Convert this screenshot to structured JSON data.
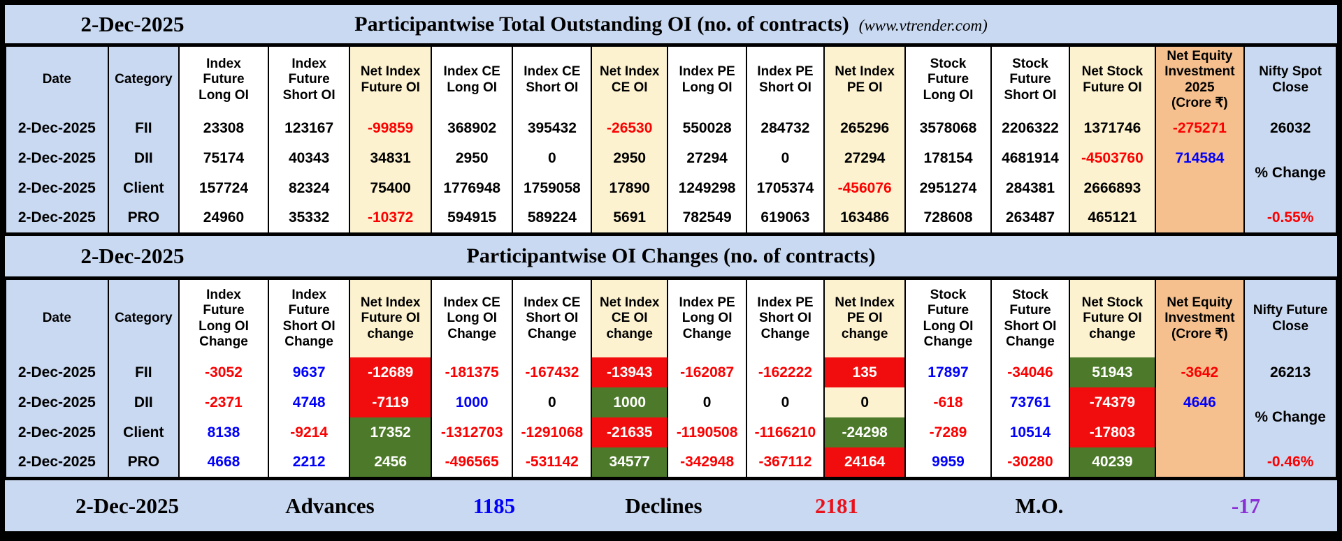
{
  "colors": {
    "page_blue": "#c9d9f1",
    "net_col_cream": "#fcf2cf",
    "equity_col_orange": "#f5c08e",
    "bearish_cell_red": "#f10d0d",
    "bullish_cell_green": "#4d7a2a",
    "negative_text_red": "#fb0000",
    "positive_text_blue": "#0000fb",
    "mo_purple": "#8b2fd6"
  },
  "band1": {
    "date": "2-Dec-2025",
    "title": "Participantwise Total Outstanding OI (no. of contracts)",
    "source": "(www.vtrender.com)"
  },
  "band2": {
    "date": "2-Dec-2025",
    "title": "Participantwise OI Changes (no. of contracts)"
  },
  "table1": {
    "columns": [
      {
        "label": "Date",
        "bg": "blue"
      },
      {
        "label": "Category",
        "bg": "blue"
      },
      {
        "label": "Index\nFuture\nLong OI",
        "bg": "white"
      },
      {
        "label": "Index\nFuture\nShort OI",
        "bg": "white"
      },
      {
        "label": "Net Index\nFuture OI",
        "bg": "cream"
      },
      {
        "label": "Index CE\nLong OI",
        "bg": "white"
      },
      {
        "label": "Index CE\nShort OI",
        "bg": "white"
      },
      {
        "label": "Net Index\nCE OI",
        "bg": "cream"
      },
      {
        "label": "Index PE\nLong OI",
        "bg": "white"
      },
      {
        "label": "Index PE\nShort OI",
        "bg": "white"
      },
      {
        "label": "Net Index\nPE OI",
        "bg": "cream"
      },
      {
        "label": "Stock\nFuture\nLong OI",
        "bg": "white"
      },
      {
        "label": "Stock\nFuture\nShort OI",
        "bg": "white"
      },
      {
        "label": "Net Stock\nFuture OI",
        "bg": "cream"
      },
      {
        "label": "Net Equity\nInvestment\n2025\n(Crore ₹)",
        "bg": "orange"
      },
      {
        "label": "Nifty Spot\nClose",
        "bg": "blue"
      }
    ],
    "rows": [
      [
        [
          "2-Dec-2025",
          "k"
        ],
        [
          "FII",
          "k"
        ],
        [
          "23308",
          "k"
        ],
        [
          "123167",
          "k"
        ],
        [
          "-99859",
          "r"
        ],
        [
          "368902",
          "k"
        ],
        [
          "395432",
          "k"
        ],
        [
          "-26530",
          "r"
        ],
        [
          "550028",
          "k"
        ],
        [
          "284732",
          "k"
        ],
        [
          "265296",
          "k"
        ],
        [
          "3578068",
          "k"
        ],
        [
          "2206322",
          "k"
        ],
        [
          "1371746",
          "k"
        ]
      ],
      [
        [
          "2-Dec-2025",
          "k"
        ],
        [
          "DII",
          "k"
        ],
        [
          "75174",
          "k"
        ],
        [
          "40343",
          "k"
        ],
        [
          "34831",
          "k"
        ],
        [
          "2950",
          "k"
        ],
        [
          "0",
          "k"
        ],
        [
          "2950",
          "k"
        ],
        [
          "27294",
          "k"
        ],
        [
          "0",
          "k"
        ],
        [
          "27294",
          "k"
        ],
        [
          "178154",
          "k"
        ],
        [
          "4681914",
          "k"
        ],
        [
          "-4503760",
          "r"
        ]
      ],
      [
        [
          "2-Dec-2025",
          "k"
        ],
        [
          "Client",
          "k"
        ],
        [
          "157724",
          "k"
        ],
        [
          "82324",
          "k"
        ],
        [
          "75400",
          "k"
        ],
        [
          "1776948",
          "k"
        ],
        [
          "1759058",
          "k"
        ],
        [
          "17890",
          "k"
        ],
        [
          "1249298",
          "k"
        ],
        [
          "1705374",
          "k"
        ],
        [
          "-456076",
          "r"
        ],
        [
          "2951274",
          "k"
        ],
        [
          "284381",
          "k"
        ],
        [
          "2666893",
          "k"
        ]
      ],
      [
        [
          "2-Dec-2025",
          "k"
        ],
        [
          "PRO",
          "k"
        ],
        [
          "24960",
          "k"
        ],
        [
          "35332",
          "k"
        ],
        [
          "-10372",
          "r"
        ],
        [
          "594915",
          "k"
        ],
        [
          "589224",
          "k"
        ],
        [
          "5691",
          "k"
        ],
        [
          "782549",
          "k"
        ],
        [
          "619063",
          "k"
        ],
        [
          "163486",
          "k"
        ],
        [
          "728608",
          "k"
        ],
        [
          "263487",
          "k"
        ],
        [
          "465121",
          "k"
        ]
      ]
    ],
    "equity": [
      [
        "-275271",
        "r"
      ],
      [
        "714584",
        "b"
      ]
    ],
    "last_col": {
      "top": [
        "26032",
        "k"
      ],
      "mid": [
        "% Change",
        "k"
      ],
      "bottom": [
        "-0.55%",
        "r"
      ]
    }
  },
  "table2": {
    "columns": [
      {
        "label": "Date",
        "bg": "blue"
      },
      {
        "label": "Category",
        "bg": "blue"
      },
      {
        "label": "Index\nFuture\nLong OI\nChange",
        "bg": "white"
      },
      {
        "label": "Index\nFuture\nShort OI\nChange",
        "bg": "white"
      },
      {
        "label": "Net Index\nFuture OI\nchange",
        "bg": "cream"
      },
      {
        "label": "Index CE\nLong OI\nChange",
        "bg": "white"
      },
      {
        "label": "Index CE\nShort OI\nChange",
        "bg": "white"
      },
      {
        "label": "Net Index\nCE OI\nchange",
        "bg": "cream"
      },
      {
        "label": "Index PE\nLong OI\nChange",
        "bg": "white"
      },
      {
        "label": "Index PE\nShort OI\nChange",
        "bg": "white"
      },
      {
        "label": "Net Index\nPE OI\nchange",
        "bg": "cream"
      },
      {
        "label": "Stock\nFuture\nLong OI\nChange",
        "bg": "white"
      },
      {
        "label": "Stock\nFuture\nShort OI\nChange",
        "bg": "white"
      },
      {
        "label": "Net Stock\nFuture OI\nchange",
        "bg": "cream"
      },
      {
        "label": "Net Equity\nInvestment\n(Crore ₹)",
        "bg": "orange"
      },
      {
        "label": "Nifty Future\nClose",
        "bg": "blue"
      }
    ],
    "rows": [
      [
        [
          "2-Dec-2025",
          "k"
        ],
        [
          "FII",
          "k"
        ],
        [
          "-3052",
          "r"
        ],
        [
          "9637",
          "b"
        ],
        [
          "-12689",
          "R"
        ],
        [
          "-181375",
          "r"
        ],
        [
          "-167432",
          "r"
        ],
        [
          "-13943",
          "R"
        ],
        [
          "-162087",
          "r"
        ],
        [
          "-162222",
          "r"
        ],
        [
          "135",
          "R"
        ],
        [
          "17897",
          "b"
        ],
        [
          "-34046",
          "r"
        ],
        [
          "51943",
          "G"
        ]
      ],
      [
        [
          "2-Dec-2025",
          "k"
        ],
        [
          "DII",
          "k"
        ],
        [
          "-2371",
          "r"
        ],
        [
          "4748",
          "b"
        ],
        [
          "-7119",
          "R"
        ],
        [
          "1000",
          "b"
        ],
        [
          "0",
          "k"
        ],
        [
          "1000",
          "G"
        ],
        [
          "0",
          "k"
        ],
        [
          "0",
          "k"
        ],
        [
          "0",
          "k"
        ],
        [
          "-618",
          "r"
        ],
        [
          "73761",
          "b"
        ],
        [
          "-74379",
          "R"
        ]
      ],
      [
        [
          "2-Dec-2025",
          "k"
        ],
        [
          "Client",
          "k"
        ],
        [
          "8138",
          "b"
        ],
        [
          "-9214",
          "r"
        ],
        [
          "17352",
          "G"
        ],
        [
          "-1312703",
          "r"
        ],
        [
          "-1291068",
          "r"
        ],
        [
          "-21635",
          "R"
        ],
        [
          "-1190508",
          "r"
        ],
        [
          "-1166210",
          "r"
        ],
        [
          "-24298",
          "G"
        ],
        [
          "-7289",
          "r"
        ],
        [
          "10514",
          "b"
        ],
        [
          "-17803",
          "R"
        ]
      ],
      [
        [
          "2-Dec-2025",
          "k"
        ],
        [
          "PRO",
          "k"
        ],
        [
          "4668",
          "b"
        ],
        [
          "2212",
          "b"
        ],
        [
          "2456",
          "G"
        ],
        [
          "-496565",
          "r"
        ],
        [
          "-531142",
          "r"
        ],
        [
          "34577",
          "G"
        ],
        [
          "-342948",
          "r"
        ],
        [
          "-367112",
          "r"
        ],
        [
          "24164",
          "R"
        ],
        [
          "9959",
          "b"
        ],
        [
          "-30280",
          "r"
        ],
        [
          "40239",
          "G"
        ]
      ]
    ],
    "equity": [
      [
        "-3642",
        "r"
      ],
      [
        "4646",
        "b"
      ]
    ],
    "last_col": {
      "top": [
        "26213",
        "k"
      ],
      "mid": [
        "% Change",
        "k"
      ],
      "bottom": [
        "-0.46%",
        "r"
      ]
    }
  },
  "footer": {
    "date": "2-Dec-2025",
    "advances_label": "Advances",
    "advances_value": "1185",
    "declines_label": "Declines",
    "declines_value": "2181",
    "mo_label": "M.O.",
    "mo_value": "-17"
  }
}
